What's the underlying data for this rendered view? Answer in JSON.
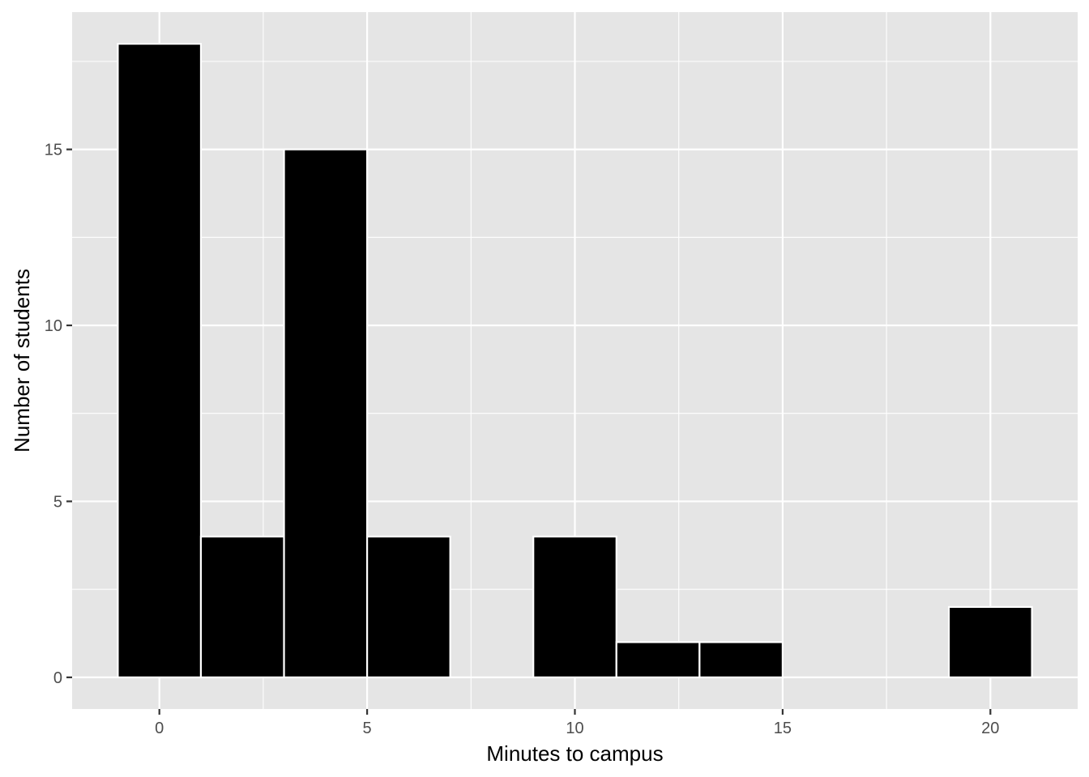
{
  "chart_data": {
    "type": "bar",
    "subtype": "histogram",
    "xlabel": "Minutes to campus",
    "ylabel": "Number of students",
    "xlim": [
      -2.1,
      22.1
    ],
    "ylim": [
      -0.9,
      18.9
    ],
    "x_ticks": [
      0,
      5,
      10,
      15,
      20
    ],
    "y_ticks": [
      0,
      5,
      10,
      15
    ],
    "grid": true,
    "bin_width": 2,
    "bins": [
      {
        "start": -1,
        "end": 1,
        "count": 18
      },
      {
        "start": 1,
        "end": 3,
        "count": 4
      },
      {
        "start": 3,
        "end": 5,
        "count": 15
      },
      {
        "start": 5,
        "end": 7,
        "count": 4
      },
      {
        "start": 7,
        "end": 9,
        "count": 0
      },
      {
        "start": 9,
        "end": 11,
        "count": 4
      },
      {
        "start": 11,
        "end": 13,
        "count": 1
      },
      {
        "start": 13,
        "end": 15,
        "count": 1
      },
      {
        "start": 15,
        "end": 17,
        "count": 0
      },
      {
        "start": 17,
        "end": 19,
        "count": 0
      },
      {
        "start": 19,
        "end": 21,
        "count": 2
      }
    ],
    "colors": {
      "panel_background": "#e5e5e5",
      "gridline": "#ffffff",
      "bar_fill": "#000000",
      "bar_outline": "#ffffff"
    }
  }
}
